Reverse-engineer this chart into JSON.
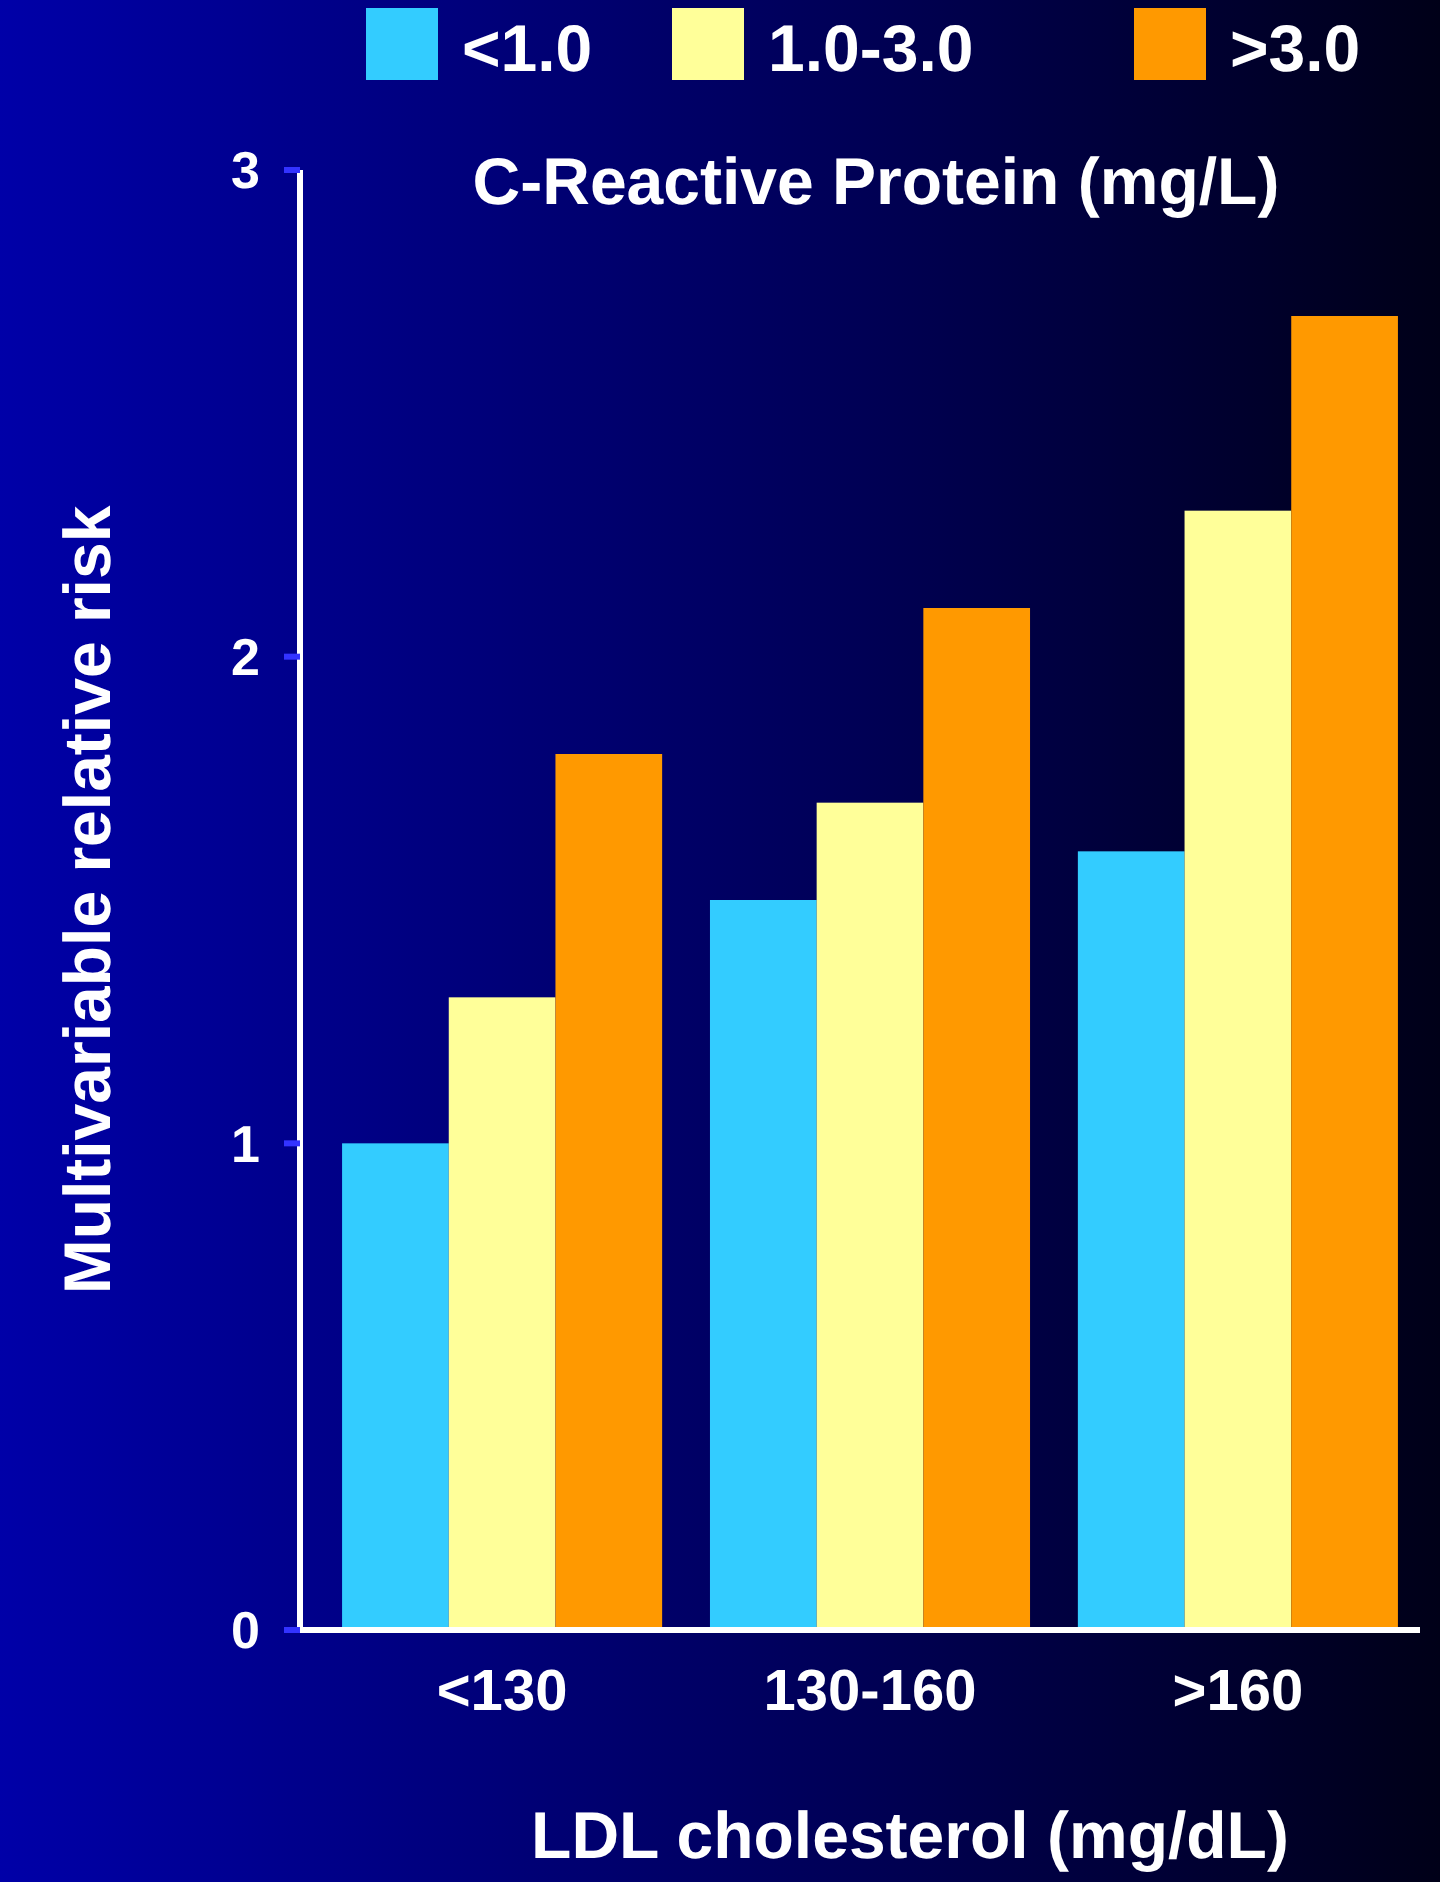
{
  "chart_data": {
    "type": "bar",
    "xlabel": "LDL cholesterol (mg/dL)",
    "ylabel": "Multivariable relative risk",
    "legend_title": "C-Reactive Protein (mg/L)",
    "categories": [
      "<130",
      "130-160",
      ">160"
    ],
    "series": [
      {
        "name": "<1.0",
        "color": "#33ccff",
        "values": [
          1.0,
          1.5,
          1.6
        ]
      },
      {
        "name": "1.0-3.0",
        "color": "#ffff99",
        "values": [
          1.3,
          1.7,
          2.3
        ]
      },
      {
        "name": ">3.0",
        "color": "#ff9900",
        "values": [
          1.8,
          2.1,
          2.7
        ]
      }
    ],
    "ylim": [
      0,
      3
    ],
    "yticks": [
      0,
      1,
      2,
      3
    ],
    "grid": false,
    "legend": "top"
  }
}
